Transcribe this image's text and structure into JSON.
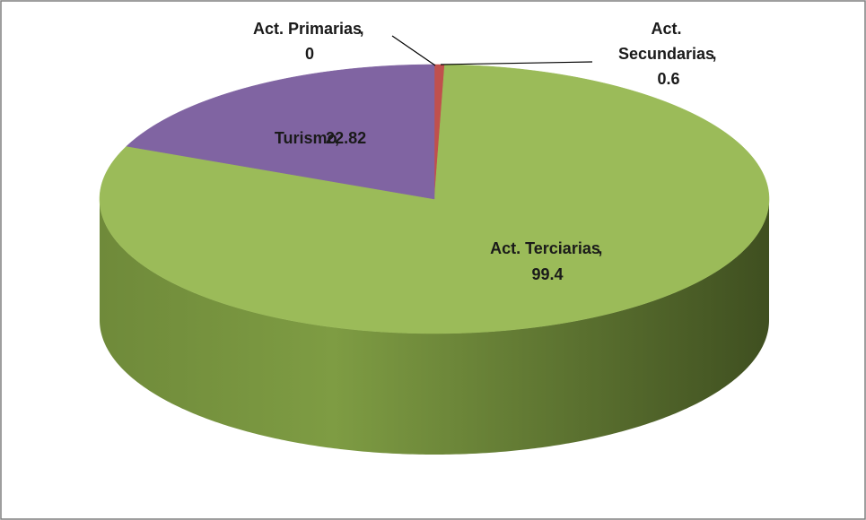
{
  "chart_data": {
    "type": "pie3d",
    "categories": [
      "Act. Primarias",
      "Act. Secundarias",
      "Act. Terciarias",
      "Turismo"
    ],
    "values": [
      0,
      0.6,
      99.4,
      22.82
    ],
    "colors": [
      "#4f81bd",
      "#c0504d",
      "#9bbb59",
      "#8064a2"
    ],
    "label_separator": ","
  }
}
